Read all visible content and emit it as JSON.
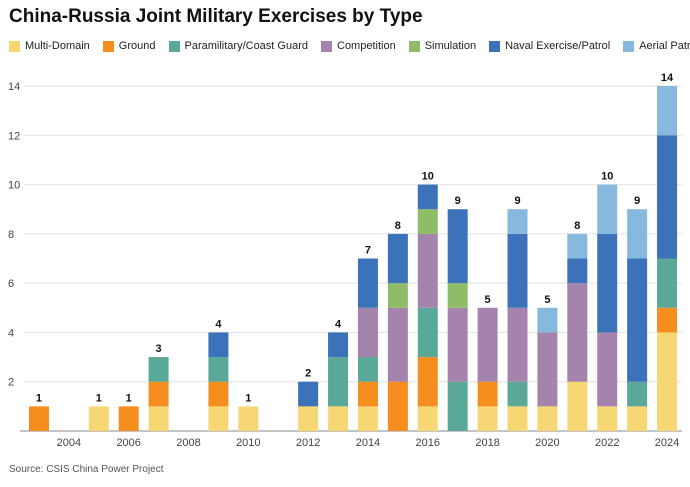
{
  "chart_data": {
    "type": "bar",
    "stacked": true,
    "title": "China-Russia Joint Military Exercises by Type",
    "source": "Source: CSIS China Power Project",
    "xlabel": "",
    "ylabel": "",
    "ylim": [
      0,
      14
    ],
    "yticks": [
      2,
      4,
      6,
      8,
      10,
      12,
      14
    ],
    "grid": true,
    "legend_position": "top",
    "categories": [
      "2003",
      "2004",
      "2005",
      "2006",
      "2007",
      "2008",
      "2009",
      "2010",
      "2011",
      "2012",
      "2013",
      "2014",
      "2015",
      "2016",
      "2017",
      "2018",
      "2019",
      "2020",
      "2021",
      "2022",
      "2023",
      "2024"
    ],
    "xtick_labels": [
      "2004",
      "2006",
      "2008",
      "2010",
      "2012",
      "2014",
      "2016",
      "2018",
      "2020",
      "2022",
      "2024"
    ],
    "totals": [
      1,
      0,
      1,
      1,
      3,
      0,
      4,
      1,
      0,
      2,
      4,
      7,
      8,
      10,
      9,
      5,
      9,
      5,
      8,
      10,
      9,
      14
    ],
    "series": [
      {
        "name": "Multi-Domain",
        "color": "#f7d774",
        "values": [
          0,
          0,
          1,
          0,
          1,
          0,
          1,
          1,
          0,
          1,
          1,
          1,
          0,
          1,
          0,
          1,
          1,
          1,
          2,
          1,
          1,
          4
        ]
      },
      {
        "name": "Ground",
        "color": "#f68d1f",
        "values": [
          1,
          0,
          0,
          1,
          1,
          0,
          1,
          0,
          0,
          0,
          0,
          1,
          2,
          2,
          0,
          1,
          0,
          0,
          0,
          0,
          0,
          1
        ]
      },
      {
        "name": "Paramilitary/Coast Guard",
        "color": "#5aa897",
        "values": [
          0,
          0,
          0,
          0,
          1,
          0,
          1,
          0,
          0,
          0,
          2,
          1,
          0,
          2,
          2,
          0,
          1,
          0,
          0,
          0,
          1,
          2
        ]
      },
      {
        "name": "Competition",
        "color": "#a483ad",
        "values": [
          0,
          0,
          0,
          0,
          0,
          0,
          0,
          0,
          0,
          0,
          0,
          2,
          3,
          3,
          3,
          3,
          3,
          3,
          4,
          3,
          0,
          0
        ]
      },
      {
        "name": "Simulation",
        "color": "#8fbc66",
        "values": [
          0,
          0,
          0,
          0,
          0,
          0,
          0,
          0,
          0,
          0,
          0,
          0,
          1,
          1,
          1,
          0,
          0,
          0,
          0,
          0,
          0,
          0
        ]
      },
      {
        "name": "Naval Exercise/Patrol",
        "color": "#3b72b9",
        "values": [
          0,
          0,
          0,
          0,
          0,
          0,
          1,
          0,
          0,
          1,
          1,
          2,
          2,
          1,
          3,
          0,
          3,
          0,
          1,
          4,
          5,
          5
        ]
      },
      {
        "name": "Aerial Patrol",
        "color": "#87b9df",
        "values": [
          0,
          0,
          0,
          0,
          0,
          0,
          0,
          0,
          0,
          0,
          0,
          0,
          0,
          0,
          0,
          0,
          1,
          1,
          1,
          2,
          2,
          2
        ]
      }
    ]
  }
}
